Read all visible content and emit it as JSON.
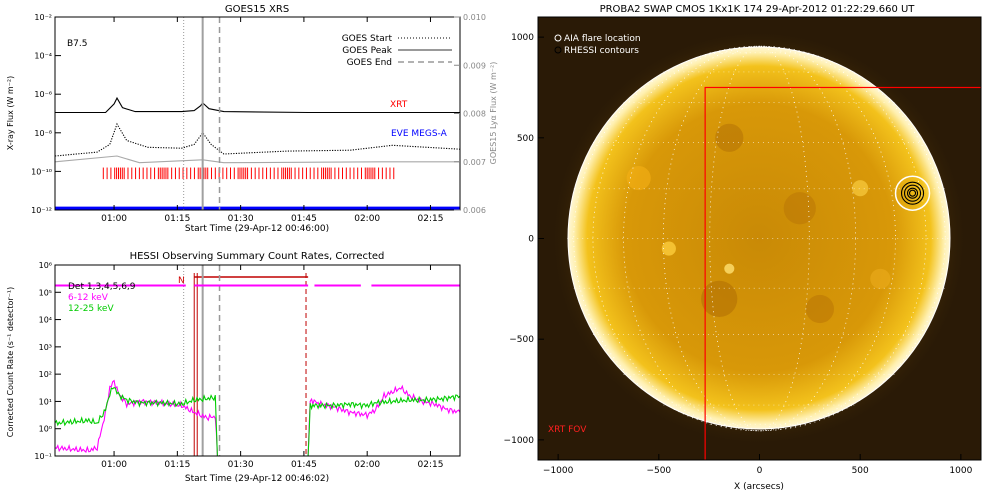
{
  "chart_data": [
    {
      "type": "line",
      "title": "GOES15 XRS",
      "xlabel": "Start Time (29-Apr-12 00:46:00)",
      "ylabel": "X-ray Flux (W m⁻²)",
      "ylabel_right": "GOES15 Lyα Flux (W m⁻²)",
      "x_ticks": [
        "01:00",
        "01:15",
        "01:30",
        "01:45",
        "02:00",
        "02:15"
      ],
      "xlim_minutes": [
        0,
        96
      ],
      "y_ticks": [
        "10⁻²",
        "10⁻⁴",
        "10⁻⁶",
        "10⁻⁸",
        "10⁻¹⁰",
        "10⁻¹²"
      ],
      "y_ticks_right": [
        "0.010",
        "0.009",
        "0.008",
        "0.007",
        "0.006"
      ],
      "ylim_log": [
        -12,
        -2
      ],
      "ylim_right": [
        0.006,
        0.01
      ],
      "annotations": {
        "class": "B7.5",
        "xrt": "XRT",
        "eve": "EVE MEGS-A"
      },
      "legend": [
        "GOES Start",
        "GOES Peak",
        "GOES End"
      ],
      "events_min": {
        "start": 30.5,
        "peak": 35,
        "end": 39
      },
      "series": [
        {
          "name": "",
          "color": "#000000",
          "x": [
            0,
            12,
            14,
            14.7,
            16,
            19,
            30,
            33,
            34.5,
            35,
            36.5,
            40,
            60,
            80,
            96
          ],
          "y": [
            -6.95,
            -6.95,
            -6.5,
            -6.2,
            -6.7,
            -6.9,
            -6.9,
            -6.85,
            -6.6,
            -6.45,
            -6.75,
            -6.9,
            -6.95,
            -6.95,
            -6.95
          ]
        },
        {
          "name": "",
          "color": "#000000",
          "x": [
            0,
            10,
            13,
            14.7,
            17,
            22,
            30,
            33,
            35,
            37,
            40,
            55,
            70,
            80,
            96
          ],
          "y": [
            -9.2,
            -9.0,
            -8.6,
            -7.55,
            -8.4,
            -8.75,
            -8.8,
            -8.6,
            -8.0,
            -8.6,
            -9.1,
            -8.95,
            -8.9,
            -8.65,
            -8.85
          ]
        },
        {
          "name": "",
          "color": "#a8a8a8",
          "x": [
            0,
            14.7,
            20,
            35,
            40,
            80,
            96
          ],
          "y": [
            -9.5,
            -9.2,
            -9.55,
            -9.4,
            -9.55,
            -9.5,
            -9.5
          ]
        },
        {
          "name": "",
          "color": "#0000ff",
          "x": [
            0,
            96
          ],
          "y": [
            -11.9,
            -11.9
          ]
        }
      ],
      "xrt_obs_min": [
        11,
        81
      ]
    },
    {
      "type": "line",
      "title": "HESSI Observing Summary Count Rates, Corrected",
      "xlabel": "Start Time (29-Apr-12 00:46:02)",
      "ylabel": "Corrected Count Rate (s⁻¹ detector⁻¹)",
      "x_ticks": [
        "01:00",
        "01:15",
        "01:30",
        "01:45",
        "02:00",
        "02:15"
      ],
      "xlim_minutes": [
        0,
        96
      ],
      "y_ticks": [
        "10⁶",
        "10⁵",
        "10⁴",
        "10³",
        "10²",
        "10¹",
        "10⁰",
        "10⁻¹"
      ],
      "ylim_log": [
        -1,
        6
      ],
      "legend": [
        "Det 1,3,4,5,6,9",
        "6-12 keV",
        "12-25 keV"
      ],
      "legend_colors": [
        "#000000",
        "#ff00ff",
        "#00cc00"
      ],
      "night_label": "N",
      "night_min": [
        33,
        60
      ],
      "eclipse_min": [
        33.5,
        39
      ],
      "saa_min": [
        59.5,
        60
      ],
      "series": [
        {
          "name": "6-12 keV",
          "color": "#ff00ff",
          "x": [
            0,
            8,
            10,
            12,
            13,
            14,
            15,
            17,
            20,
            25,
            30,
            33,
            36,
            38,
            38.5,
            60,
            60.5,
            63,
            66,
            70,
            74,
            76,
            78,
            82,
            84,
            87,
            90,
            93,
            96
          ],
          "y": [
            -0.7,
            -0.8,
            -0.7,
            0.6,
            1.5,
            1.75,
            1.3,
            0.9,
            1.0,
            0.95,
            0.85,
            0.6,
            0.4,
            0.45,
            -1,
            -1,
            1.05,
            0.9,
            0.8,
            0.6,
            0.5,
            0.7,
            1.2,
            1.5,
            1.2,
            1.0,
            0.9,
            0.7,
            0.6
          ]
        },
        {
          "name": "12-25 keV",
          "color": "#00cc00",
          "x": [
            0,
            8,
            10,
            12,
            13,
            14,
            15,
            17,
            20,
            25,
            30,
            33,
            36,
            38,
            38.5,
            60,
            60.5,
            63,
            66,
            70,
            74,
            76,
            80,
            84,
            88,
            92,
            96
          ],
          "y": [
            0.2,
            0.3,
            0.2,
            0.7,
            1.3,
            1.55,
            1.25,
            1.05,
            0.95,
            0.95,
            0.9,
            1.05,
            1.1,
            1.15,
            -1,
            -1,
            0.85,
            0.85,
            0.85,
            0.9,
            0.85,
            0.95,
            1.0,
            1.05,
            1.05,
            1.1,
            1.2
          ]
        }
      ],
      "attenuator": {
        "color": "#ff00ff",
        "value_log": 5.25,
        "segments_min": [
          [
            0,
            31
          ],
          [
            33,
            60
          ],
          [
            61.5,
            72.5
          ],
          [
            75,
            96
          ]
        ]
      }
    },
    {
      "type": "heatmap",
      "title": "PROBA2 SWAP CMOS 1Kx1K 174 29-Apr-2012 01:22:29.660 UT",
      "xlabel": "X (arcsecs)",
      "ylabel": "",
      "x_ticks": [
        -1000,
        -500,
        0,
        500,
        1000
      ],
      "y_ticks": [
        1000,
        500,
        0,
        -500,
        -1000
      ],
      "xlim": [
        -1100,
        1100
      ],
      "ylim": [
        -1100,
        1100
      ],
      "legend": [
        "AIA flare location",
        "RHESSI contours"
      ],
      "xrt_fov_label": "XRT FOV",
      "xrt_fov": {
        "x": [
          -270,
          1110
        ],
        "y": [
          -1110,
          750
        ]
      },
      "solar_radius_arcsec": 955,
      "flare": {
        "x": 760,
        "y": 225
      }
    }
  ]
}
